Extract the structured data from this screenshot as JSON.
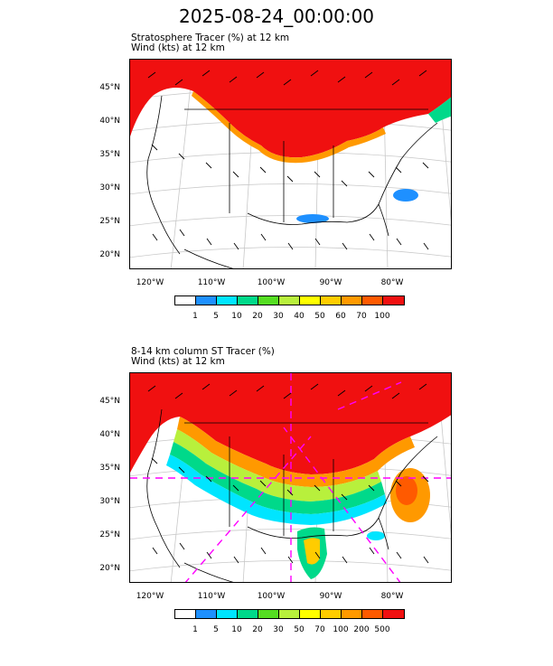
{
  "title": "2025-08-24_00:00:00",
  "panels": [
    {
      "line1": "Stratosphere Tracer   (%)      at    12 km",
      "line2": "Wind    (kts)      at   12 km",
      "lat_labels": [
        "45°N",
        "40°N",
        "35°N",
        "30°N",
        "25°N",
        "20°N"
      ],
      "lon_labels": [
        "120°W",
        "110°W",
        "100°W",
        "90°W",
        "80°W"
      ],
      "colorbar_labels": [
        "1",
        "5",
        "10",
        "20",
        "30",
        "40",
        "50",
        "60",
        "70",
        "100"
      ]
    },
    {
      "line1": "8-14 km column ST Tracer    (%)",
      "line2": "Wind    (kts)      at   12 km",
      "lat_labels": [
        "45°N",
        "40°N",
        "35°N",
        "30°N",
        "25°N",
        "20°N"
      ],
      "lon_labels": [
        "120°W",
        "110°W",
        "100°W",
        "90°W",
        "80°W"
      ],
      "colorbar_labels": [
        "1",
        "5",
        "10",
        "20",
        "30",
        "50",
        "70",
        "100",
        "200",
        "500"
      ]
    }
  ],
  "colorbar_colors": [
    "#ffffff",
    "#1e90ff",
    "#00e5ff",
    "#00d98a",
    "#55dd22",
    "#b8f03c",
    "#ffff00",
    "#ffcc00",
    "#ff9900",
    "#ff5a00",
    "#f01010"
  ],
  "colors": {
    "tracer_high": "#f01010",
    "tracer_mid": "#ff9900",
    "dashed_line": "#ff00ff"
  }
}
